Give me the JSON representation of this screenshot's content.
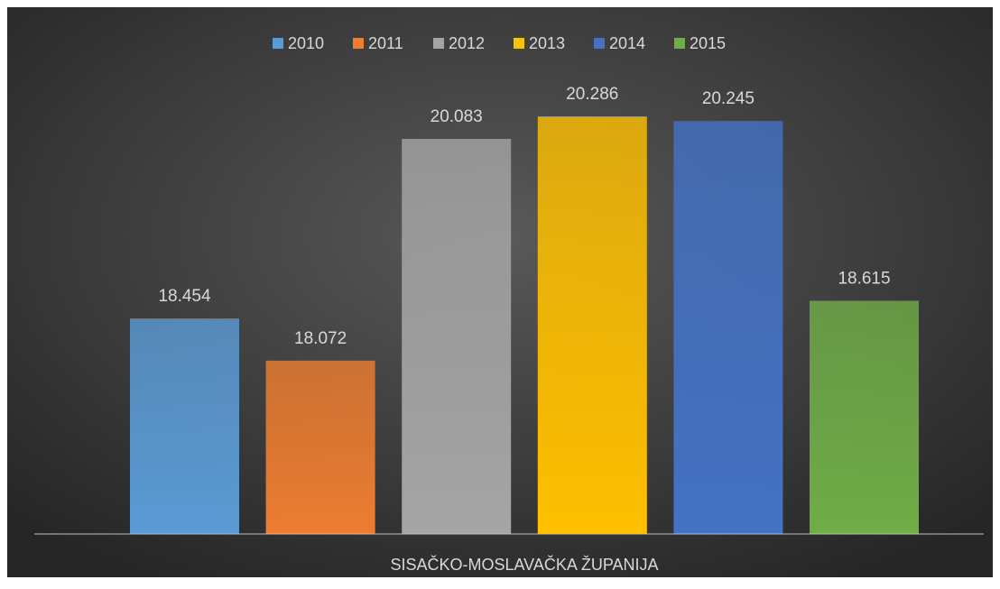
{
  "chart_data": {
    "type": "bar",
    "categories": [
      "SISAČKO-MOSLAVAČKA ŽUPANIJA"
    ],
    "series": [
      {
        "name": "2010",
        "color": "#5b9bd5",
        "values": [
          18.454
        ]
      },
      {
        "name": "2011",
        "color": "#ed7d31",
        "values": [
          18.072
        ]
      },
      {
        "name": "2012",
        "color": "#a5a5a5",
        "values": [
          20.083
        ]
      },
      {
        "name": "2013",
        "color": "#ffc000",
        "values": [
          20.286
        ]
      },
      {
        "name": "2014",
        "color": "#4472c4",
        "values": [
          20.245
        ]
      },
      {
        "name": "2015",
        "color": "#70ad47",
        "values": [
          18.615
        ]
      }
    ],
    "ylim": [
      16.5,
      20.5
    ],
    "legend": "top"
  }
}
